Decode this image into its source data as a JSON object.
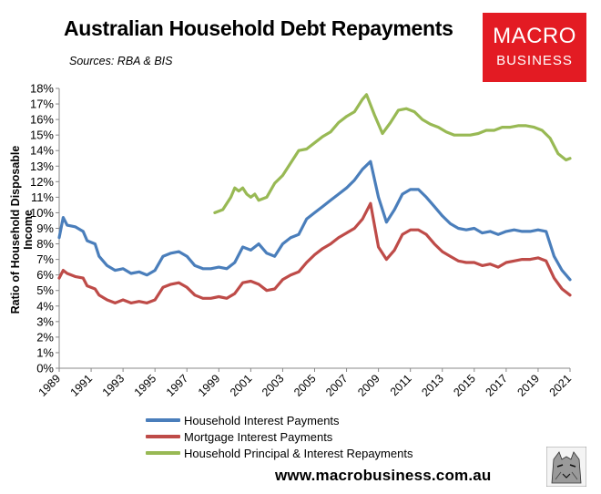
{
  "title": "Australian Household Debt Repayments",
  "subtitle": "Sources: RBA & BIS",
  "logo": {
    "line1": "MACRO",
    "line2": "BUSINESS"
  },
  "website": "www.macrobusiness.com.au",
  "colors": {
    "blue": "#4a7ebb",
    "red": "#be4b48",
    "green": "#98b954",
    "logo_red": "#e31b23"
  },
  "chart_data": {
    "type": "line",
    "xlabel": "",
    "ylabel": "Ratio of Household Disposable Income",
    "xlim": [
      1989,
      2021
    ],
    "ylim": [
      0,
      18
    ],
    "y_ticks": [
      "0%",
      "1%",
      "2%",
      "3%",
      "4%",
      "5%",
      "6%",
      "7%",
      "8%",
      "9%",
      "10%",
      "11%",
      "12%",
      "13%",
      "14%",
      "15%",
      "16%",
      "17%",
      "18%"
    ],
    "x_ticks": [
      "1989",
      "1991",
      "1993",
      "1995",
      "1997",
      "1999",
      "2001",
      "2003",
      "2005",
      "2007",
      "2009",
      "2011",
      "2013",
      "2015",
      "2017",
      "2019",
      "2021"
    ],
    "legend_position": "bottom",
    "series": [
      {
        "name": "Household Interest Payments",
        "color": "#4a7ebb",
        "points": [
          [
            1989.0,
            8.4
          ],
          [
            1989.25,
            9.7
          ],
          [
            1989.5,
            9.2
          ],
          [
            1990.0,
            9.1
          ],
          [
            1990.5,
            8.8
          ],
          [
            1990.75,
            8.2
          ],
          [
            1991.25,
            8.0
          ],
          [
            1991.5,
            7.2
          ],
          [
            1992.0,
            6.6
          ],
          [
            1992.5,
            6.3
          ],
          [
            1993.0,
            6.4
          ],
          [
            1993.5,
            6.1
          ],
          [
            1994.0,
            6.2
          ],
          [
            1994.5,
            6.0
          ],
          [
            1995.0,
            6.3
          ],
          [
            1995.5,
            7.2
          ],
          [
            1996.0,
            7.4
          ],
          [
            1996.5,
            7.5
          ],
          [
            1997.0,
            7.2
          ],
          [
            1997.5,
            6.6
          ],
          [
            1998.0,
            6.4
          ],
          [
            1998.5,
            6.4
          ],
          [
            1999.0,
            6.5
          ],
          [
            1999.5,
            6.4
          ],
          [
            2000.0,
            6.8
          ],
          [
            2000.5,
            7.8
          ],
          [
            2001.0,
            7.6
          ],
          [
            2001.5,
            8.0
          ],
          [
            2002.0,
            7.4
          ],
          [
            2002.5,
            7.2
          ],
          [
            2003.0,
            8.0
          ],
          [
            2003.5,
            8.4
          ],
          [
            2004.0,
            8.6
          ],
          [
            2004.5,
            9.6
          ],
          [
            2005.0,
            10.0
          ],
          [
            2005.5,
            10.4
          ],
          [
            2006.0,
            10.8
          ],
          [
            2006.5,
            11.2
          ],
          [
            2007.0,
            11.6
          ],
          [
            2007.5,
            12.1
          ],
          [
            2008.0,
            12.8
          ],
          [
            2008.5,
            13.3
          ],
          [
            2009.0,
            11.0
          ],
          [
            2009.5,
            9.4
          ],
          [
            2010.0,
            10.2
          ],
          [
            2010.5,
            11.2
          ],
          [
            2011.0,
            11.5
          ],
          [
            2011.5,
            11.5
          ],
          [
            2012.0,
            11.0
          ],
          [
            2012.5,
            10.4
          ],
          [
            2013.0,
            9.8
          ],
          [
            2013.5,
            9.3
          ],
          [
            2014.0,
            9.0
          ],
          [
            2014.5,
            8.9
          ],
          [
            2015.0,
            9.0
          ],
          [
            2015.5,
            8.7
          ],
          [
            2016.0,
            8.8
          ],
          [
            2016.5,
            8.6
          ],
          [
            2017.0,
            8.8
          ],
          [
            2017.5,
            8.9
          ],
          [
            2018.0,
            8.8
          ],
          [
            2018.5,
            8.8
          ],
          [
            2019.0,
            8.9
          ],
          [
            2019.5,
            8.8
          ],
          [
            2020.0,
            7.2
          ],
          [
            2020.5,
            6.3
          ],
          [
            2021.0,
            5.7
          ]
        ]
      },
      {
        "name": "Mortgage Interest Payments",
        "color": "#be4b48",
        "points": [
          [
            1989.0,
            5.8
          ],
          [
            1989.25,
            6.3
          ],
          [
            1989.5,
            6.1
          ],
          [
            1990.0,
            5.9
          ],
          [
            1990.5,
            5.8
          ],
          [
            1990.75,
            5.3
          ],
          [
            1991.25,
            5.1
          ],
          [
            1991.5,
            4.7
          ],
          [
            1992.0,
            4.4
          ],
          [
            1992.5,
            4.2
          ],
          [
            1993.0,
            4.4
          ],
          [
            1993.5,
            4.2
          ],
          [
            1994.0,
            4.3
          ],
          [
            1994.5,
            4.2
          ],
          [
            1995.0,
            4.4
          ],
          [
            1995.5,
            5.2
          ],
          [
            1996.0,
            5.4
          ],
          [
            1996.5,
            5.5
          ],
          [
            1997.0,
            5.2
          ],
          [
            1997.5,
            4.7
          ],
          [
            1998.0,
            4.5
          ],
          [
            1998.5,
            4.5
          ],
          [
            1999.0,
            4.6
          ],
          [
            1999.5,
            4.5
          ],
          [
            2000.0,
            4.8
          ],
          [
            2000.5,
            5.5
          ],
          [
            2001.0,
            5.6
          ],
          [
            2001.5,
            5.4
          ],
          [
            2002.0,
            5.0
          ],
          [
            2002.5,
            5.1
          ],
          [
            2003.0,
            5.7
          ],
          [
            2003.5,
            6.0
          ],
          [
            2004.0,
            6.2
          ],
          [
            2004.5,
            6.8
          ],
          [
            2005.0,
            7.3
          ],
          [
            2005.5,
            7.7
          ],
          [
            2006.0,
            8.0
          ],
          [
            2006.5,
            8.4
          ],
          [
            2007.0,
            8.7
          ],
          [
            2007.5,
            9.0
          ],
          [
            2008.0,
            9.6
          ],
          [
            2008.5,
            10.6
          ],
          [
            2009.0,
            7.8
          ],
          [
            2009.5,
            7.0
          ],
          [
            2010.0,
            7.6
          ],
          [
            2010.5,
            8.6
          ],
          [
            2011.0,
            8.9
          ],
          [
            2011.5,
            8.9
          ],
          [
            2012.0,
            8.6
          ],
          [
            2012.5,
            8.0
          ],
          [
            2013.0,
            7.5
          ],
          [
            2013.5,
            7.2
          ],
          [
            2014.0,
            6.9
          ],
          [
            2014.5,
            6.8
          ],
          [
            2015.0,
            6.8
          ],
          [
            2015.5,
            6.6
          ],
          [
            2016.0,
            6.7
          ],
          [
            2016.5,
            6.5
          ],
          [
            2017.0,
            6.8
          ],
          [
            2017.5,
            6.9
          ],
          [
            2018.0,
            7.0
          ],
          [
            2018.5,
            7.0
          ],
          [
            2019.0,
            7.1
          ],
          [
            2019.5,
            6.9
          ],
          [
            2020.0,
            5.8
          ],
          [
            2020.5,
            5.1
          ],
          [
            2021.0,
            4.7
          ]
        ]
      },
      {
        "name": "Household Principal & Interest Repayments",
        "color": "#98b954",
        "points": [
          [
            1998.75,
            10.0
          ],
          [
            1999.25,
            10.2
          ],
          [
            1999.75,
            11.0
          ],
          [
            2000.0,
            11.6
          ],
          [
            2000.25,
            11.4
          ],
          [
            2000.5,
            11.6
          ],
          [
            2000.75,
            11.2
          ],
          [
            2001.0,
            11.0
          ],
          [
            2001.25,
            11.2
          ],
          [
            2001.5,
            10.8
          ],
          [
            2002.0,
            11.0
          ],
          [
            2002.5,
            11.9
          ],
          [
            2003.0,
            12.4
          ],
          [
            2003.5,
            13.2
          ],
          [
            2004.0,
            14.0
          ],
          [
            2004.5,
            14.1
          ],
          [
            2005.0,
            14.5
          ],
          [
            2005.5,
            14.9
          ],
          [
            2006.0,
            15.2
          ],
          [
            2006.5,
            15.8
          ],
          [
            2007.0,
            16.2
          ],
          [
            2007.5,
            16.5
          ],
          [
            2008.0,
            17.3
          ],
          [
            2008.25,
            17.6
          ],
          [
            2008.75,
            16.3
          ],
          [
            2009.25,
            15.1
          ],
          [
            2009.75,
            15.8
          ],
          [
            2010.25,
            16.6
          ],
          [
            2010.75,
            16.7
          ],
          [
            2011.25,
            16.5
          ],
          [
            2011.75,
            16.0
          ],
          [
            2012.25,
            15.7
          ],
          [
            2012.75,
            15.5
          ],
          [
            2013.25,
            15.2
          ],
          [
            2013.75,
            15.0
          ],
          [
            2014.25,
            15.0
          ],
          [
            2014.75,
            15.0
          ],
          [
            2015.25,
            15.1
          ],
          [
            2015.75,
            15.3
          ],
          [
            2016.25,
            15.3
          ],
          [
            2016.75,
            15.5
          ],
          [
            2017.25,
            15.5
          ],
          [
            2017.75,
            15.6
          ],
          [
            2018.25,
            15.6
          ],
          [
            2018.75,
            15.5
          ],
          [
            2019.25,
            15.3
          ],
          [
            2019.75,
            14.8
          ],
          [
            2020.25,
            13.8
          ],
          [
            2020.75,
            13.4
          ],
          [
            2021.0,
            13.5
          ]
        ]
      }
    ]
  }
}
